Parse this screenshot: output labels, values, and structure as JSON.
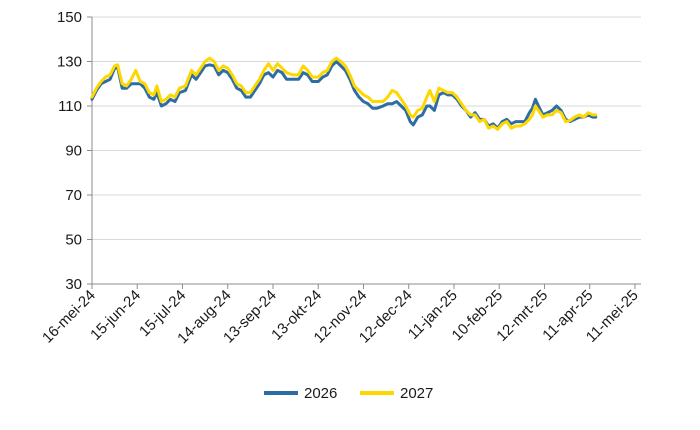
{
  "chart_data": {
    "type": "line",
    "title": "",
    "xlabel": "",
    "ylabel": "",
    "ylim": [
      30,
      150
    ],
    "yticks": [
      30,
      50,
      70,
      90,
      110,
      130,
      150
    ],
    "x_range": [
      "2024-05-16",
      "2025-05-15"
    ],
    "xticks": [
      {
        "date": "2024-05-16",
        "label": "16-mei-24"
      },
      {
        "date": "2024-06-15",
        "label": "15-jun-24"
      },
      {
        "date": "2024-07-15",
        "label": "15-jul-24"
      },
      {
        "date": "2024-08-14",
        "label": "14-aug-24"
      },
      {
        "date": "2024-09-13",
        "label": "13-sep-24"
      },
      {
        "date": "2024-10-13",
        "label": "13-okt-24"
      },
      {
        "date": "2024-11-12",
        "label": "12-nov-24"
      },
      {
        "date": "2024-12-12",
        "label": "12-dec-24"
      },
      {
        "date": "2025-01-11",
        "label": "11-jan-25"
      },
      {
        "date": "2025-02-10",
        "label": "10-feb-25"
      },
      {
        "date": "2025-03-12",
        "label": "12-mrt-25"
      },
      {
        "date": "2025-04-11",
        "label": "11-apr-25"
      },
      {
        "date": "2025-05-11",
        "label": "11-mei-25"
      }
    ],
    "grid": {
      "horizontal": true,
      "vertical": false
    },
    "legend": {
      "position": "bottom"
    },
    "series": [
      {
        "name": "2026",
        "color": "#2e6da4",
        "points": [
          [
            "2024-05-16",
            113
          ],
          [
            "2024-05-19",
            117
          ],
          [
            "2024-05-22",
            120
          ],
          [
            "2024-05-25",
            121
          ],
          [
            "2024-05-28",
            122
          ],
          [
            "2024-05-31",
            127
          ],
          [
            "2024-06-02",
            127.5
          ],
          [
            "2024-06-05",
            118
          ],
          [
            "2024-06-08",
            118
          ],
          [
            "2024-06-11",
            120
          ],
          [
            "2024-06-14",
            120
          ],
          [
            "2024-06-17",
            120
          ],
          [
            "2024-06-20",
            118
          ],
          [
            "2024-06-23",
            114
          ],
          [
            "2024-06-26",
            113
          ],
          [
            "2024-06-28",
            116
          ],
          [
            "2024-07-01",
            110
          ],
          [
            "2024-07-04",
            111
          ],
          [
            "2024-07-07",
            113
          ],
          [
            "2024-07-10",
            112
          ],
          [
            "2024-07-13",
            116
          ],
          [
            "2024-07-17",
            117
          ],
          [
            "2024-07-21",
            124
          ],
          [
            "2024-07-24",
            122
          ],
          [
            "2024-07-27",
            125
          ],
          [
            "2024-07-30",
            128
          ],
          [
            "2024-08-02",
            128.5
          ],
          [
            "2024-08-05",
            128
          ],
          [
            "2024-08-08",
            124
          ],
          [
            "2024-08-11",
            126
          ],
          [
            "2024-08-14",
            125
          ],
          [
            "2024-08-17",
            122
          ],
          [
            "2024-08-20",
            118
          ],
          [
            "2024-08-23",
            117
          ],
          [
            "2024-08-26",
            114
          ],
          [
            "2024-08-29",
            114
          ],
          [
            "2024-09-01",
            117
          ],
          [
            "2024-09-04",
            120
          ],
          [
            "2024-09-07",
            124
          ],
          [
            "2024-09-10",
            125
          ],
          [
            "2024-09-13",
            123
          ],
          [
            "2024-09-16",
            126
          ],
          [
            "2024-09-19",
            125
          ],
          [
            "2024-09-22",
            122
          ],
          [
            "2024-09-26",
            122
          ],
          [
            "2024-09-30",
            122
          ],
          [
            "2024-10-03",
            125
          ],
          [
            "2024-10-06",
            124
          ],
          [
            "2024-10-09",
            121
          ],
          [
            "2024-10-13",
            121
          ],
          [
            "2024-10-16",
            123
          ],
          [
            "2024-10-19",
            124
          ],
          [
            "2024-10-22",
            128
          ],
          [
            "2024-10-25",
            130
          ],
          [
            "2024-10-28",
            128
          ],
          [
            "2024-10-31",
            126
          ],
          [
            "2024-11-03",
            122
          ],
          [
            "2024-11-06",
            117
          ],
          [
            "2024-11-09",
            114
          ],
          [
            "2024-11-12",
            112
          ],
          [
            "2024-11-15",
            111
          ],
          [
            "2024-11-18",
            109
          ],
          [
            "2024-11-21",
            109
          ],
          [
            "2024-11-25",
            110
          ],
          [
            "2024-11-28",
            111
          ],
          [
            "2024-12-01",
            111
          ],
          [
            "2024-12-04",
            112
          ],
          [
            "2024-12-07",
            110
          ],
          [
            "2024-12-10",
            108
          ],
          [
            "2024-12-13",
            103
          ],
          [
            "2024-12-15",
            101.5
          ],
          [
            "2024-12-18",
            105
          ],
          [
            "2024-12-21",
            106
          ],
          [
            "2024-12-24",
            110
          ],
          [
            "2024-12-26",
            110
          ],
          [
            "2024-12-29",
            108
          ],
          [
            "2025-01-01",
            115
          ],
          [
            "2025-01-04",
            116
          ],
          [
            "2025-01-07",
            115
          ],
          [
            "2025-01-10",
            115
          ],
          [
            "2025-01-13",
            113
          ],
          [
            "2025-01-16",
            110
          ],
          [
            "2025-01-19",
            108
          ],
          [
            "2025-01-22",
            105
          ],
          [
            "2025-01-25",
            107
          ],
          [
            "2025-01-28",
            104
          ],
          [
            "2025-01-31",
            104
          ],
          [
            "2025-02-03",
            101
          ],
          [
            "2025-02-06",
            102
          ],
          [
            "2025-02-09",
            100
          ],
          [
            "2025-02-12",
            103
          ],
          [
            "2025-02-15",
            104
          ],
          [
            "2025-02-18",
            102
          ],
          [
            "2025-02-21",
            103
          ],
          [
            "2025-02-24",
            103
          ],
          [
            "2025-02-27",
            103
          ],
          [
            "2025-03-02",
            107
          ],
          [
            "2025-03-04",
            109
          ],
          [
            "2025-03-06",
            113
          ],
          [
            "2025-03-08",
            110
          ],
          [
            "2025-03-11",
            106
          ],
          [
            "2025-03-14",
            107
          ],
          [
            "2025-03-17",
            108
          ],
          [
            "2025-03-20",
            110
          ],
          [
            "2025-03-23",
            108
          ],
          [
            "2025-03-26",
            104
          ],
          [
            "2025-03-29",
            103
          ],
          [
            "2025-04-01",
            104
          ],
          [
            "2025-04-04",
            105
          ],
          [
            "2025-04-07",
            105
          ],
          [
            "2025-04-10",
            106
          ],
          [
            "2025-04-13",
            105
          ],
          [
            "2025-04-15",
            105
          ]
        ]
      },
      {
        "name": "2027",
        "color": "#ffd700",
        "points": [
          [
            "2024-05-16",
            114
          ],
          [
            "2024-05-19",
            118
          ],
          [
            "2024-05-22",
            121
          ],
          [
            "2024-05-25",
            123
          ],
          [
            "2024-05-28",
            124
          ],
          [
            "2024-05-31",
            128
          ],
          [
            "2024-06-02",
            128.5
          ],
          [
            "2024-06-05",
            120
          ],
          [
            "2024-06-08",
            119
          ],
          [
            "2024-06-11",
            122
          ],
          [
            "2024-06-14",
            126
          ],
          [
            "2024-06-17",
            121
          ],
          [
            "2024-06-20",
            120
          ],
          [
            "2024-06-23",
            116
          ],
          [
            "2024-06-26",
            115
          ],
          [
            "2024-06-28",
            119
          ],
          [
            "2024-07-01",
            112
          ],
          [
            "2024-07-04",
            113
          ],
          [
            "2024-07-07",
            115
          ],
          [
            "2024-07-10",
            114
          ],
          [
            "2024-07-13",
            118
          ],
          [
            "2024-07-17",
            119
          ],
          [
            "2024-07-21",
            126
          ],
          [
            "2024-07-24",
            124
          ],
          [
            "2024-07-27",
            127
          ],
          [
            "2024-07-30",
            130
          ],
          [
            "2024-08-02",
            131.5
          ],
          [
            "2024-08-05",
            130
          ],
          [
            "2024-08-08",
            126
          ],
          [
            "2024-08-11",
            128
          ],
          [
            "2024-08-14",
            127
          ],
          [
            "2024-08-17",
            124
          ],
          [
            "2024-08-20",
            120
          ],
          [
            "2024-08-23",
            119
          ],
          [
            "2024-08-26",
            116
          ],
          [
            "2024-08-29",
            116
          ],
          [
            "2024-09-01",
            119
          ],
          [
            "2024-09-04",
            122
          ],
          [
            "2024-09-07",
            126
          ],
          [
            "2024-09-10",
            129
          ],
          [
            "2024-09-13",
            126
          ],
          [
            "2024-09-16",
            129
          ],
          [
            "2024-09-19",
            127
          ],
          [
            "2024-09-22",
            125
          ],
          [
            "2024-09-26",
            124
          ],
          [
            "2024-09-30",
            124
          ],
          [
            "2024-10-03",
            128
          ],
          [
            "2024-10-06",
            126
          ],
          [
            "2024-10-09",
            123
          ],
          [
            "2024-10-13",
            123
          ],
          [
            "2024-10-16",
            125
          ],
          [
            "2024-10-19",
            126
          ],
          [
            "2024-10-22",
            130
          ],
          [
            "2024-10-25",
            131.5
          ],
          [
            "2024-10-28",
            130
          ],
          [
            "2024-10-31",
            128
          ],
          [
            "2024-11-03",
            124
          ],
          [
            "2024-11-06",
            119
          ],
          [
            "2024-11-09",
            117
          ],
          [
            "2024-11-12",
            115
          ],
          [
            "2024-11-15",
            114
          ],
          [
            "2024-11-18",
            112
          ],
          [
            "2024-11-21",
            112
          ],
          [
            "2024-11-25",
            112
          ],
          [
            "2024-11-28",
            114
          ],
          [
            "2024-12-01",
            117
          ],
          [
            "2024-12-04",
            116
          ],
          [
            "2024-12-07",
            113
          ],
          [
            "2024-12-10",
            110
          ],
          [
            "2024-12-13",
            106
          ],
          [
            "2024-12-15",
            105
          ],
          [
            "2024-12-18",
            108
          ],
          [
            "2024-12-21",
            109
          ],
          [
            "2024-12-24",
            114
          ],
          [
            "2024-12-26",
            117
          ],
          [
            "2024-12-29",
            112
          ],
          [
            "2025-01-01",
            118
          ],
          [
            "2025-01-04",
            117
          ],
          [
            "2025-01-07",
            116
          ],
          [
            "2025-01-10",
            116
          ],
          [
            "2025-01-13",
            114
          ],
          [
            "2025-01-16",
            111
          ],
          [
            "2025-01-19",
            108
          ],
          [
            "2025-01-22",
            106
          ],
          [
            "2025-01-25",
            106
          ],
          [
            "2025-01-28",
            103
          ],
          [
            "2025-01-31",
            104
          ],
          [
            "2025-02-03",
            100
          ],
          [
            "2025-02-06",
            101
          ],
          [
            "2025-02-09",
            99.5
          ],
          [
            "2025-02-12",
            102
          ],
          [
            "2025-02-15",
            103
          ],
          [
            "2025-02-18",
            100
          ],
          [
            "2025-02-21",
            101
          ],
          [
            "2025-02-24",
            101
          ],
          [
            "2025-02-27",
            102
          ],
          [
            "2025-03-02",
            104
          ],
          [
            "2025-03-04",
            106
          ],
          [
            "2025-03-06",
            110
          ],
          [
            "2025-03-08",
            108
          ],
          [
            "2025-03-11",
            105
          ],
          [
            "2025-03-14",
            106
          ],
          [
            "2025-03-17",
            106
          ],
          [
            "2025-03-20",
            108
          ],
          [
            "2025-03-23",
            107
          ],
          [
            "2025-03-26",
            103
          ],
          [
            "2025-03-29",
            103.5
          ],
          [
            "2025-04-01",
            105
          ],
          [
            "2025-04-04",
            106
          ],
          [
            "2025-04-07",
            105
          ],
          [
            "2025-04-10",
            107
          ],
          [
            "2025-04-13",
            106
          ],
          [
            "2025-04-15",
            106
          ]
        ]
      }
    ]
  }
}
